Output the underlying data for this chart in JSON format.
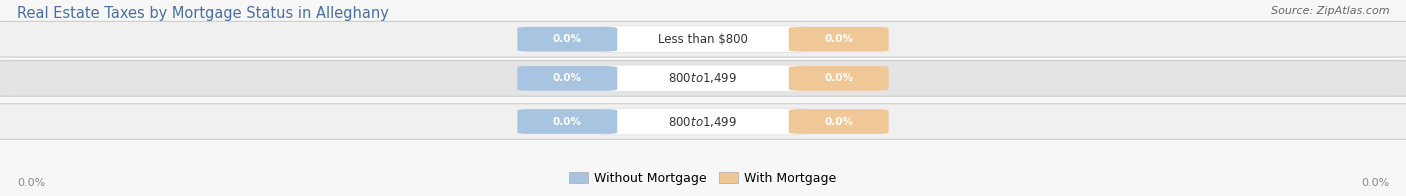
{
  "title": "Real Estate Taxes by Mortgage Status in Alleghany",
  "source": "Source: ZipAtlas.com",
  "categories": [
    "Less than $800",
    "$800 to $1,499",
    "$800 to $1,499"
  ],
  "without_mortgage": [
    0.0,
    0.0,
    0.0
  ],
  "with_mortgage": [
    0.0,
    0.0,
    0.0
  ],
  "row_colors": [
    "#f0f0f0",
    "#e4e4e4",
    "#f0f0f0"
  ],
  "without_mortgage_color": "#a8c4e0",
  "with_mortgage_color": "#f0c898",
  "axis_label_left": "0.0%",
  "axis_label_right": "0.0%",
  "title_fontsize": 10.5,
  "source_fontsize": 8,
  "figsize": [
    14.06,
    1.96
  ],
  "dpi": 100,
  "bg_color": "#f7f7f7"
}
